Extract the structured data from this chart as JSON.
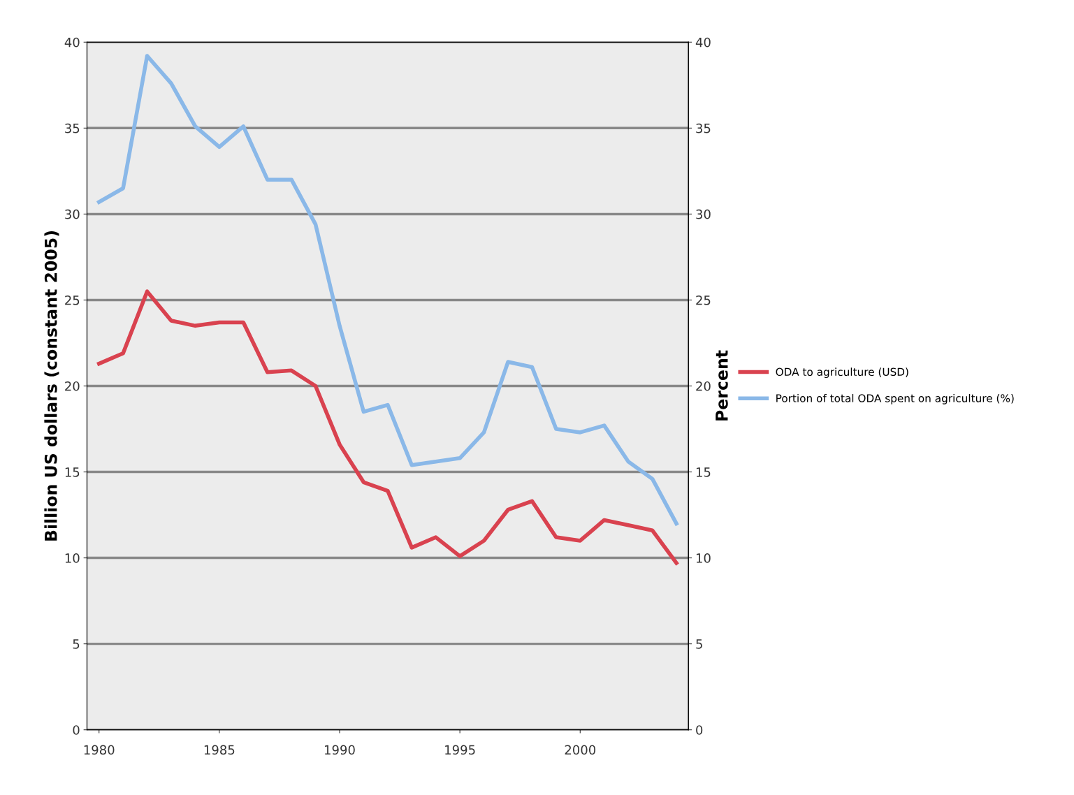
{
  "chart_data": {
    "type": "line",
    "ylabel": "Billion US dollars (constant 2005)",
    "y2label": "Percent",
    "x": [
      1980,
      1981,
      1982,
      1983,
      1984,
      1985,
      1986,
      1987,
      1988,
      1989,
      1990,
      1991,
      1992,
      1993,
      1994,
      1995,
      1996,
      1997,
      1998,
      1999,
      2000,
      2001,
      2002,
      2003,
      2004
    ],
    "series": [
      {
        "name": "ODA to agriculture (USD)",
        "color": "#d9424f",
        "values": [
          21.3,
          21.9,
          25.5,
          23.8,
          23.5,
          23.7,
          23.7,
          20.8,
          20.9,
          20.0,
          16.6,
          14.4,
          13.9,
          10.6,
          11.2,
          10.1,
          11.0,
          12.8,
          13.3,
          11.2,
          11.0,
          12.2,
          11.9,
          11.6,
          9.7
        ]
      },
      {
        "name": "Portion of total ODA spent on agriculture (%)",
        "color": "#8ab8e8",
        "axis": "y2",
        "values": [
          30.7,
          31.5,
          39.2,
          37.6,
          35.1,
          33.9,
          35.1,
          32.0,
          32.0,
          29.4,
          23.5,
          18.5,
          18.9,
          15.4,
          15.6,
          15.8,
          17.3,
          21.4,
          21.1,
          17.5,
          17.3,
          17.7,
          15.6,
          14.6,
          12.0
        ]
      }
    ],
    "xlim": [
      1979.5,
      2004.5
    ],
    "xticks": [
      1980,
      1985,
      1990,
      1995,
      2000
    ],
    "ylim": [
      0,
      40
    ],
    "yticks": [
      0,
      5,
      10,
      15,
      20,
      25,
      30,
      35,
      40
    ],
    "y2lim": [
      0,
      40
    ],
    "y2ticks": [
      0,
      5,
      10,
      15,
      20,
      25,
      30,
      35,
      40
    ],
    "grid": "y",
    "legend": "right",
    "marker": "none",
    "line_style": "solid"
  }
}
